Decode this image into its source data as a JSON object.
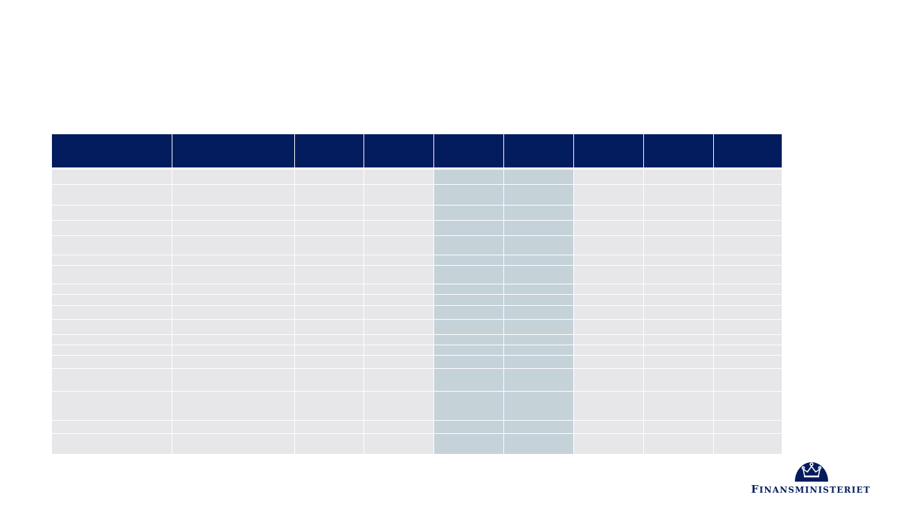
{
  "table": {
    "columns": [
      "",
      "",
      "",
      "",
      "",
      "",
      "",
      "",
      ""
    ],
    "highlight_columns": [
      4,
      5
    ],
    "rows": [
      [
        "",
        "",
        "",
        "",
        "",
        "",
        "",
        "",
        ""
      ],
      [
        "",
        "",
        "",
        "",
        "",
        "",
        "",
        "",
        ""
      ],
      [
        "",
        "",
        "",
        "",
        "",
        "",
        "",
        "",
        ""
      ],
      [
        "",
        "",
        "",
        "",
        "",
        "",
        "",
        "",
        ""
      ],
      [
        "",
        "",
        "",
        "",
        "",
        "",
        "",
        "",
        ""
      ],
      [
        "",
        "",
        "",
        "",
        "",
        "",
        "",
        "",
        ""
      ],
      [
        "",
        "",
        "",
        "",
        "",
        "",
        "",
        "",
        ""
      ],
      [
        "",
        "",
        "",
        "",
        "",
        "",
        "",
        "",
        ""
      ],
      [
        "",
        "",
        "",
        "",
        "",
        "",
        "",
        "",
        ""
      ],
      [
        "",
        "",
        "",
        "",
        "",
        "",
        "",
        "",
        ""
      ],
      [
        "",
        "",
        "",
        "",
        "",
        "",
        "",
        "",
        ""
      ],
      [
        "",
        "",
        "",
        "",
        "",
        "",
        "",
        "",
        ""
      ],
      [
        "",
        "",
        "",
        "",
        "",
        "",
        "",
        "",
        ""
      ],
      [
        "",
        "",
        "",
        "",
        "",
        "",
        "",
        "",
        ""
      ],
      [
        "",
        "",
        "",
        "",
        "",
        "",
        "",
        "",
        ""
      ],
      [
        "",
        "",
        "",
        "",
        "",
        "",
        "",
        "",
        ""
      ],
      [
        "",
        "",
        "",
        "",
        "",
        "",
        "",
        "",
        ""
      ],
      [
        "",
        "",
        "",
        "",
        "",
        "",
        "",
        "",
        ""
      ]
    ]
  },
  "logo": {
    "initial": "F",
    "rest": "INANSMINISTERIET",
    "color": "#021c5e"
  },
  "colors": {
    "header_bg": "#021c5e",
    "row_bg": "#e7e7e9",
    "highlight_bg": "#c5d3d9"
  }
}
